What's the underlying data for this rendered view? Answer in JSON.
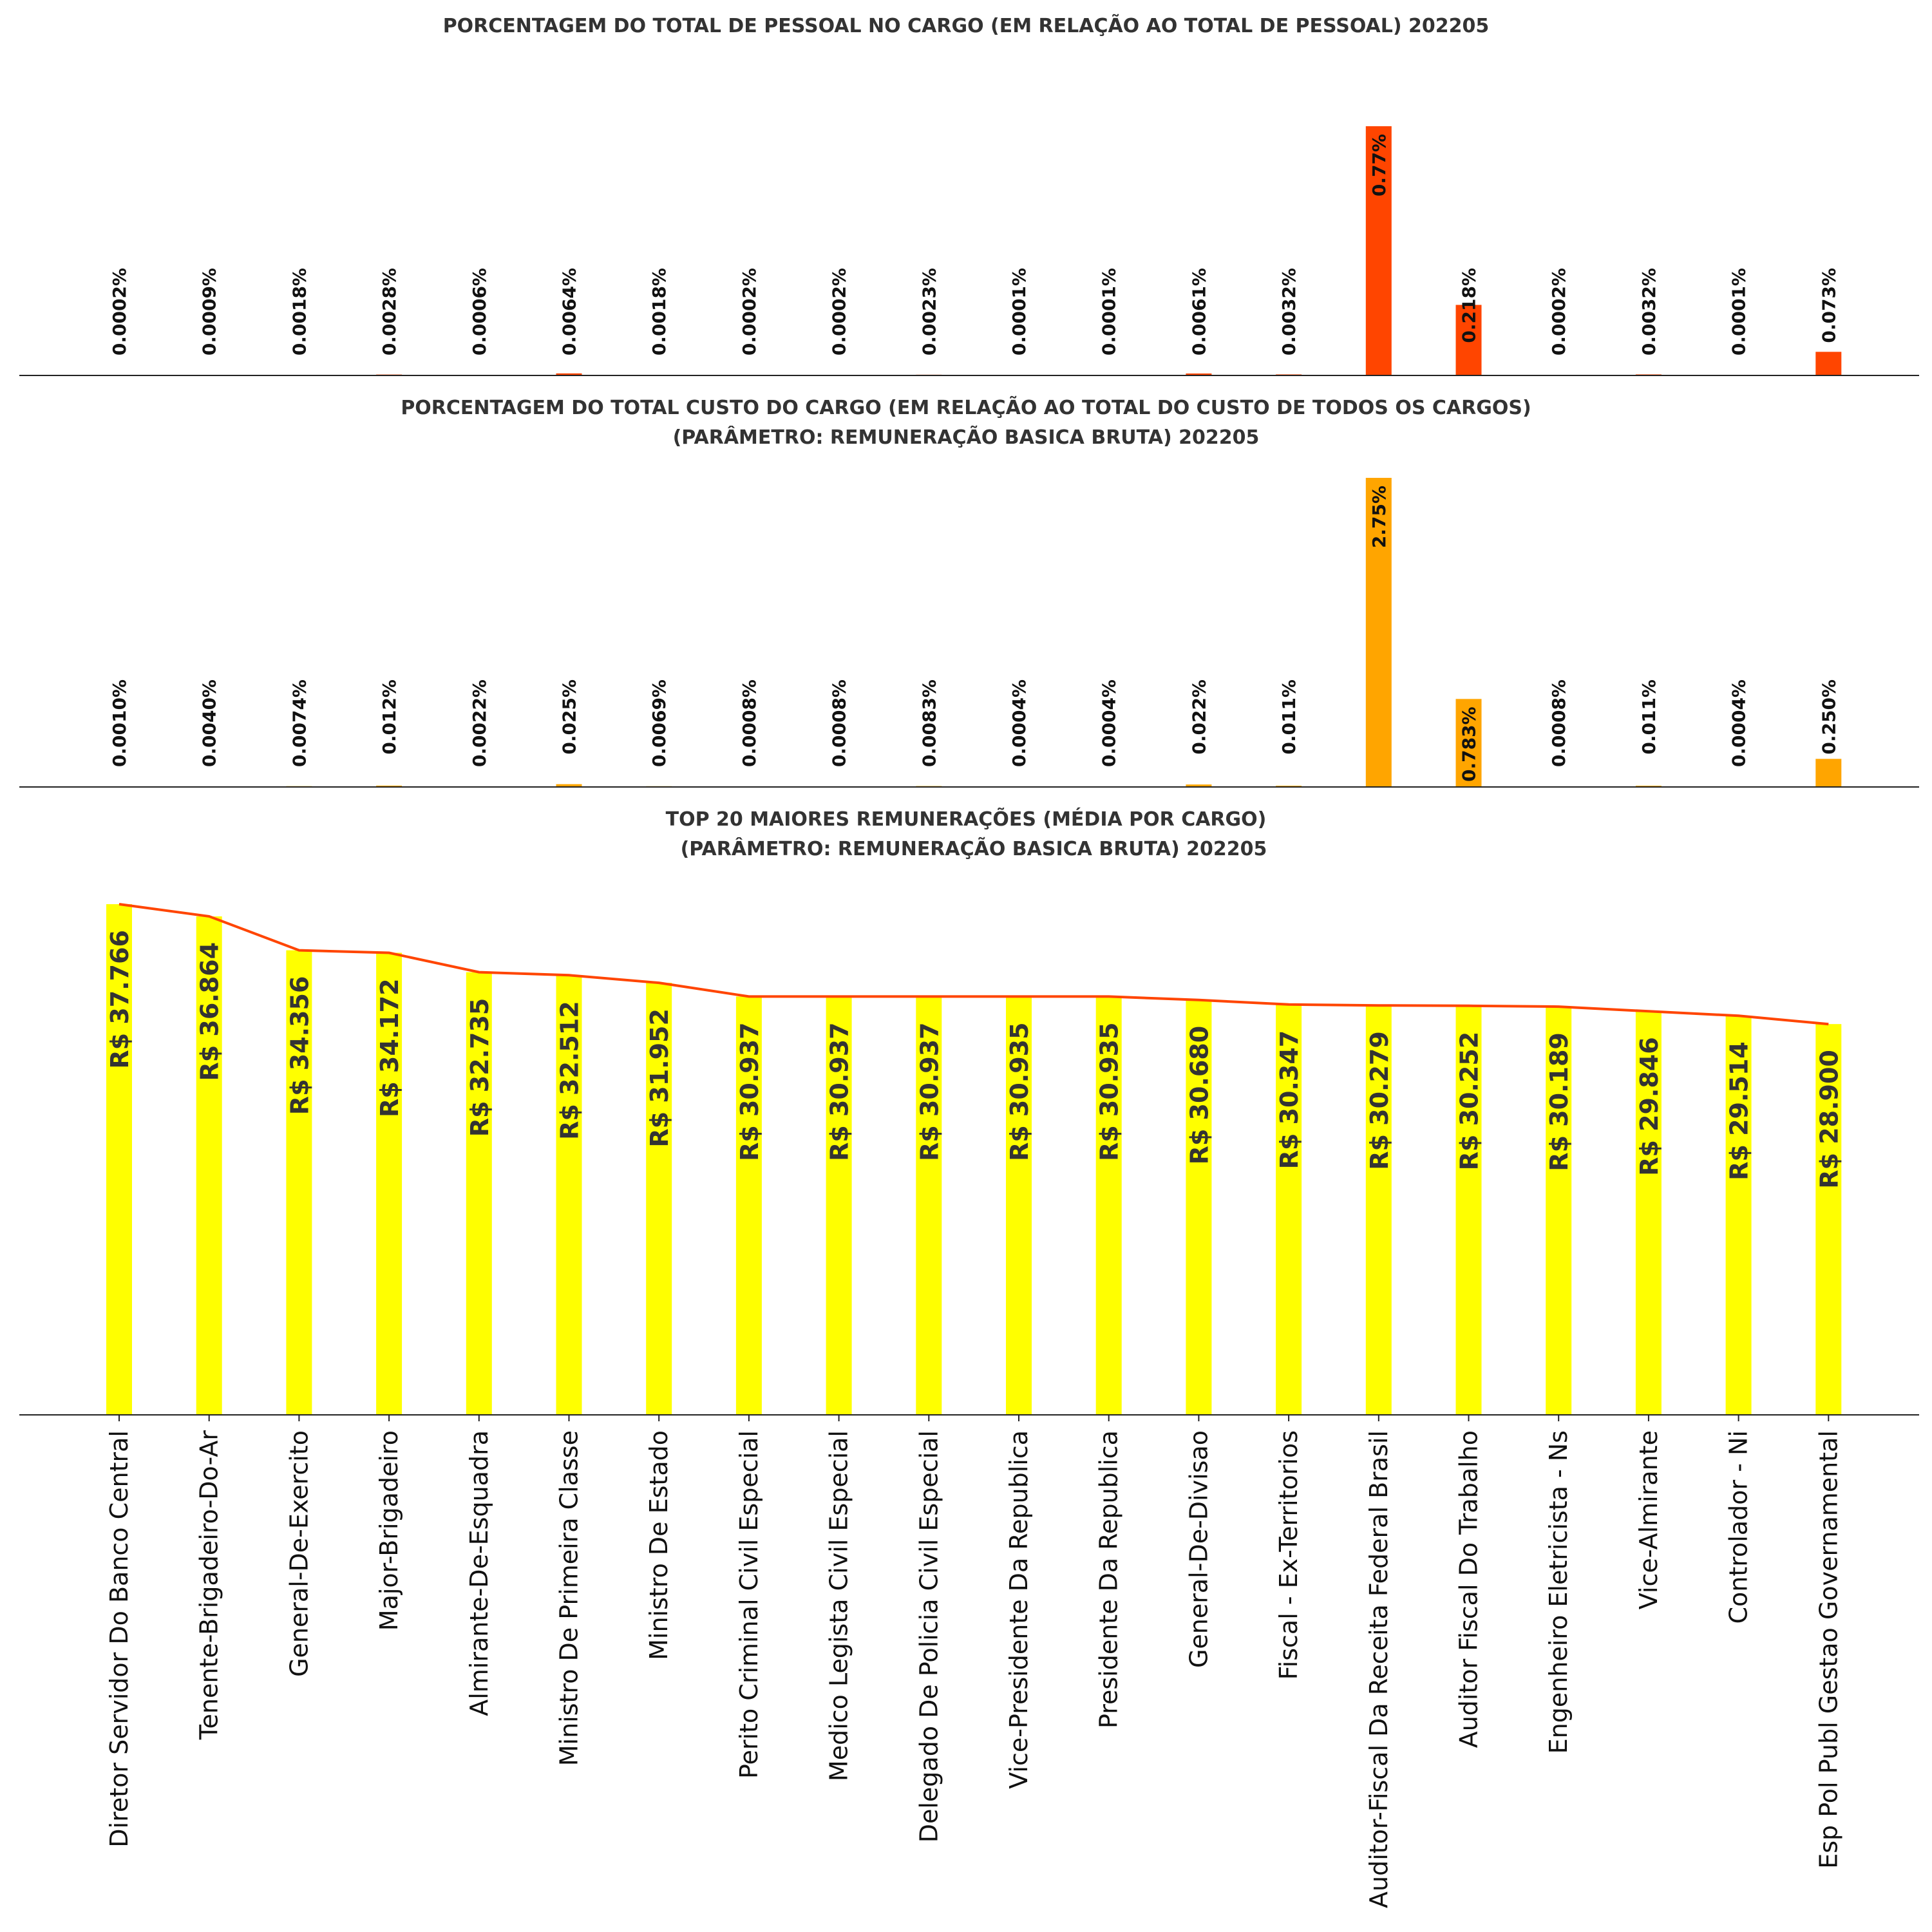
{
  "chart_data": [
    {
      "type": "bar",
      "title": "PORCENTAGEM DO TOTAL DE PESSOAL NO CARGO (EM RELAÇÃO AO TOTAL DE PESSOAL) 202205",
      "values": [
        0.0002,
        0.0009,
        0.0018,
        0.0028,
        0.0006,
        0.0064,
        0.0018,
        0.0002,
        0.0002,
        0.0023,
        0.0001,
        0.0001,
        0.0061,
        0.0032,
        0.77,
        0.218,
        0.0002,
        0.0032,
        0.0001,
        0.073
      ],
      "labels": [
        "0.0002%",
        "0.0009%",
        "0.0018%",
        "0.0028%",
        "0.0006%",
        "0.0064%",
        "0.0018%",
        "0.0002%",
        "0.0002%",
        "0.0023%",
        "0.0001%",
        "0.0001%",
        "0.0061%",
        "0.0032%",
        "0.77%",
        "0.218%",
        "0.0002%",
        "0.0032%",
        "0.0001%",
        "0.073%"
      ],
      "color": "#ff4500"
    },
    {
      "type": "bar",
      "title": "PORCENTAGEM DO TOTAL CUSTO DO CARGO (EM RELAÇÃO AO TOTAL DO CUSTO DE TODOS OS CARGOS)",
      "subtitle": "(PARÂMETRO: REMUNERAÇÃO BASICA BRUTA) 202205",
      "values": [
        0.001,
        0.004,
        0.0074,
        0.012,
        0.0022,
        0.025,
        0.0069,
        0.0008,
        0.0008,
        0.0083,
        0.0004,
        0.0004,
        0.022,
        0.011,
        2.75,
        0.783,
        0.0008,
        0.011,
        0.0004,
        0.25
      ],
      "labels": [
        "0.0010%",
        "0.0040%",
        "0.0074%",
        "0.012%",
        "0.0022%",
        "0.025%",
        "0.0069%",
        "0.0008%",
        "0.0008%",
        "0.0083%",
        "0.0004%",
        "0.0004%",
        "0.022%",
        "0.011%",
        "2.75%",
        "0.783%",
        "0.0008%",
        "0.011%",
        "0.0004%",
        "0.250%"
      ],
      "color": "#ffa500"
    },
    {
      "type": "bar",
      "title": "TOP 20 MAIORES REMUNERAÇÕES (MÉDIA POR CARGO)",
      "subtitle": "(PARÂMETRO: REMUNERAÇÃO BASICA BRUTA)  202205",
      "categories": [
        "Diretor Servidor Do Banco Central",
        "Tenente-Brigadeiro-Do-Ar",
        "General-De-Exercito",
        "Major-Brigadeiro",
        "Almirante-De-Esquadra",
        "Ministro De Primeira Classe",
        "Ministro De Estado",
        "Perito Criminal Civil Especial",
        "Medico Legista Civil Especial",
        "Delegado De Policia Civil Especial",
        "Vice-Presidente Da Republica",
        "Presidente Da Republica",
        "General-De-Divisao",
        "Fiscal - Ex-Territorios",
        "Auditor-Fiscal Da Receita Federal Brasil",
        "Auditor Fiscal Do Trabalho",
        "Engenheiro Eletricista - Ns",
        "Vice-Almirante",
        "Controlador - Ni",
        "Esp Pol Publ Gestao Governamental"
      ],
      "values": [
        37766,
        36864,
        34356,
        34172,
        32735,
        32512,
        31952,
        30937,
        30937,
        30937,
        30935,
        30935,
        30680,
        30347,
        30279,
        30252,
        30189,
        29846,
        29514,
        28900
      ],
      "labels": [
        "R$ 37.766",
        "R$ 36.864",
        "R$ 34.356",
        "R$ 34.172",
        "R$ 32.735",
        "R$ 32.512",
        "R$ 31.952",
        "R$ 30.937",
        "R$ 30.937",
        "R$ 30.937",
        "R$ 30.935",
        "R$ 30.935",
        "R$ 30.680",
        "R$ 30.347",
        "R$ 30.279",
        "R$ 30.252",
        "R$ 30.189",
        "R$ 29.846",
        "R$ 29.514",
        "R$ 28.900"
      ],
      "ylim": [
        0,
        37766
      ],
      "color": "#ffff00",
      "line_color": "#ff4500"
    }
  ]
}
